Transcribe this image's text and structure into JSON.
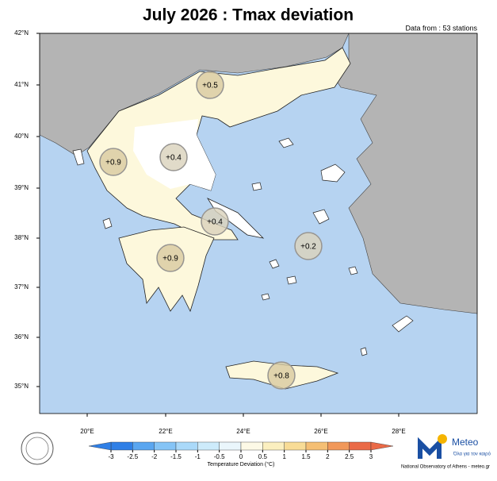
{
  "header": {
    "title": "July 2026 : Tmax deviation",
    "source": "Data from : 53 stations"
  },
  "map": {
    "lat_labels": [
      "42°N",
      "41°N",
      "40°N",
      "39°N",
      "38°N",
      "37°N",
      "36°N",
      "35°N"
    ],
    "lon_labels": [
      "20°E",
      "22°E",
      "24°E",
      "26°E",
      "28°E"
    ],
    "markers": [
      {
        "value": 0.5,
        "label": "+0.5"
      },
      {
        "value": 0.9,
        "label": "+0.9"
      },
      {
        "value": 0.4,
        "label": "+0.4"
      },
      {
        "value": 0.4,
        "label": "+0.4"
      },
      {
        "value": 0.2,
        "label": "+0.2"
      },
      {
        "value": 0.9,
        "label": "+0.9"
      },
      {
        "value": 0.8,
        "label": "+0.8"
      }
    ]
  },
  "colorbar": {
    "ticks": [
      -3,
      -2.5,
      -2,
      -1.5,
      -1,
      -0.5,
      0,
      0.5,
      1,
      1.5,
      2,
      2.5,
      3
    ],
    "colors": [
      "#2f7fe6",
      "#5aa6f0",
      "#85c4f6",
      "#aad9f9",
      "#cdebfb",
      "#eaf6fc",
      "#fdf9e6",
      "#fbefbf",
      "#f8dc96",
      "#f5bf74",
      "#f1985a",
      "#ea6a47"
    ],
    "label": "Temperature Deviation (°C)"
  },
  "footer": {
    "brand": "Meteo",
    "slogan": "Όλα για τον καιρό",
    "credit": "National Observatory of Athens - meteo.gr"
  }
}
